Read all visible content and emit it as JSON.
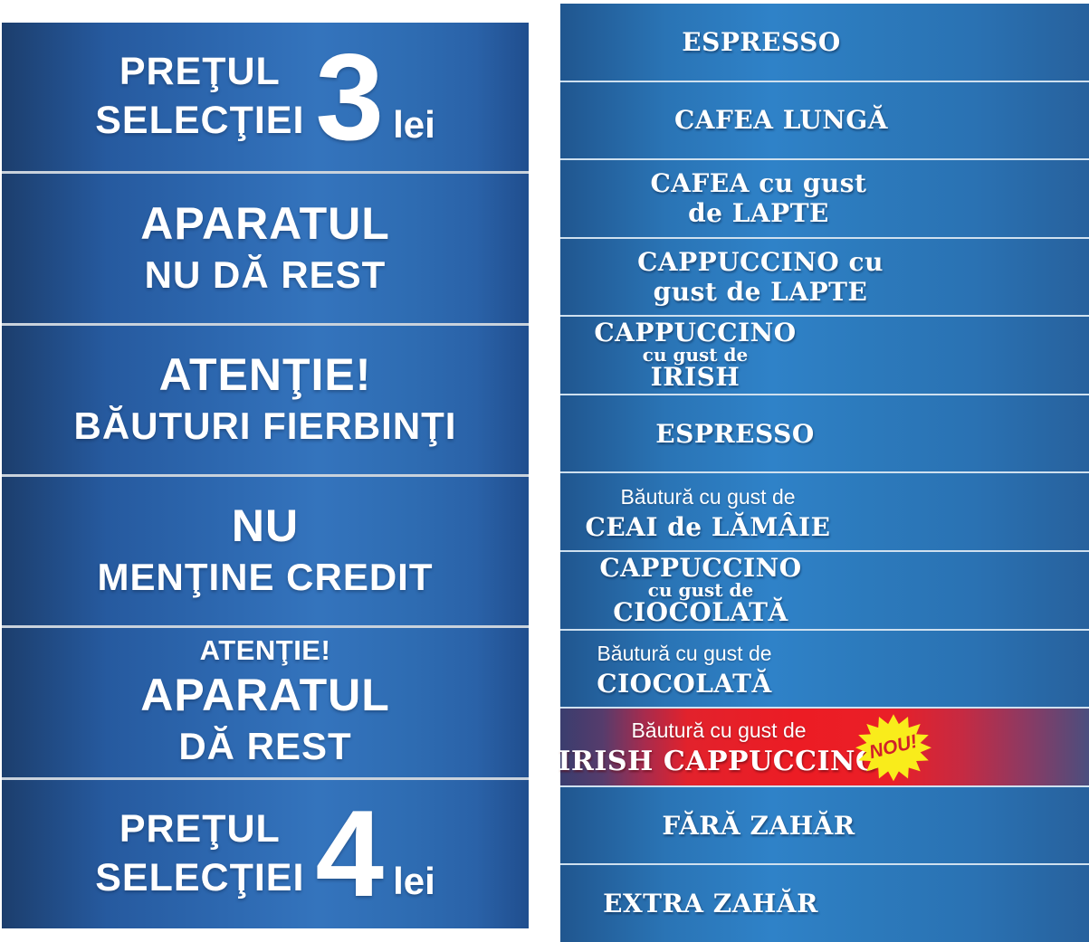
{
  "colors": {
    "left_panel_blue": "#2d68b0",
    "right_strip_blue": "#2c7abc",
    "new_strip_red": "#ea1f27",
    "badge_yellow": "#f9ec1b",
    "text_white": "#ffffff",
    "badge_text_red": "#d1202a"
  },
  "left_column": {
    "panels": [
      {
        "line1": "PREŢUL",
        "line2": "SELECŢIEI",
        "number": "3",
        "unit": "lei"
      },
      {
        "line1": "APARATUL",
        "line2": "NU DĂ REST"
      },
      {
        "line1": "ATENŢIE!",
        "line2": "BĂUTURI FIERBINŢI"
      },
      {
        "line1": "NU",
        "line2": "MENŢINE CREDIT"
      },
      {
        "line_top": "ATENŢIE!",
        "line1": "APARATUL",
        "line2": "DĂ REST"
      },
      {
        "line1": "PREŢUL",
        "line2": "SELECŢIEI",
        "number": "4",
        "unit": "lei"
      }
    ]
  },
  "right_column": {
    "strips": [
      {
        "big": "ESPRESSO"
      },
      {
        "big": "CAFEA LUNGĂ"
      },
      {
        "big": "CAFEA cu gust",
        "big2": "de LAPTE"
      },
      {
        "big": "CAPPUCCINO cu",
        "big2": "gust de LAPTE"
      },
      {
        "big": "CAPPUCCINO",
        "small": "cu gust de",
        "big2": "IRISH"
      },
      {
        "big": "ESPRESSO"
      },
      {
        "sans": "Băutură cu gust de",
        "big": "CEAI de LĂMÂIE"
      },
      {
        "big": "CAPPUCCINO",
        "small": "cu gust de",
        "big2": "CIOCOLATĂ"
      },
      {
        "sans": "Băutură cu gust de",
        "big": "CIOCOLATĂ"
      },
      {
        "sans": "Băutură cu gust de",
        "big": "IRISH CAPPUCCINO",
        "badge": "NOU!"
      },
      {
        "big": "FĂRĂ ZAHĂR"
      },
      {
        "big": "EXTRA ZAHĂR"
      }
    ]
  }
}
